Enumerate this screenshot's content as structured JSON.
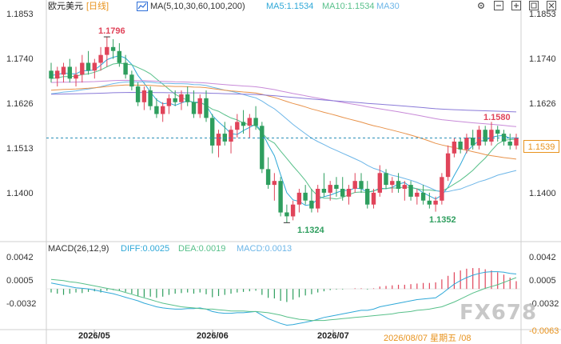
{
  "header": {
    "instrument": "欧元美元",
    "period": "[日线]",
    "ma_params": "MA(5,10,30,60,100,200)",
    "ma5": "MA5:1.1534",
    "ma10": "MA10:1.1534",
    "ma30": "MA30",
    "tools": [
      "settings-icon",
      "collapse-icon",
      "expand-icon",
      "fullscreen-icon",
      "crosshair-icon"
    ]
  },
  "price_axis": {
    "ticks": [
      "1.1853",
      "1.1740",
      "1.1626",
      "1.1513",
      "1.1400"
    ],
    "current": "1.1539"
  },
  "annotations": {
    "high1": "1.1796",
    "high2": "1.1580",
    "low1": "1.1324",
    "low2": "1.1352"
  },
  "macd": {
    "title": "MACD(26,12,9)",
    "diff": "DIFF:0.0025",
    "dea": "DEA:0.0019",
    "macd": "MACD:0.0013",
    "ticks": [
      "0.0042",
      "0.0005",
      "-0.0032"
    ],
    "min_label": "-0.0063"
  },
  "x_axis": {
    "labels": [
      "2026/05",
      "2026/06",
      "2026/07"
    ],
    "cursor_date": "2026/08/07 星期五 /08"
  },
  "watermark": "FX678",
  "colors": {
    "up": "#e0445a",
    "down": "#2e9e5e",
    "ma5": "#2fa8d8",
    "ma10": "#58c08a",
    "ma30": "#6db6e8",
    "ma60": "#e8924a",
    "ma100": "#c88ad8",
    "ma200": "#8a7ad8",
    "accent": "#e8931e"
  },
  "chart_data": {
    "type": "candlestick",
    "y_range": [
      1.128,
      1.1853
    ],
    "candles": [
      {
        "o": 1.171,
        "h": 1.173,
        "l": 1.168,
        "c": 1.169
      },
      {
        "o": 1.169,
        "h": 1.172,
        "l": 1.167,
        "c": 1.171
      },
      {
        "o": 1.17,
        "h": 1.173,
        "l": 1.168,
        "c": 1.172
      },
      {
        "o": 1.172,
        "h": 1.174,
        "l": 1.168,
        "c": 1.169
      },
      {
        "o": 1.169,
        "h": 1.172,
        "l": 1.167,
        "c": 1.17
      },
      {
        "o": 1.17,
        "h": 1.175,
        "l": 1.168,
        "c": 1.173
      },
      {
        "o": 1.173,
        "h": 1.176,
        "l": 1.17,
        "c": 1.171
      },
      {
        "o": 1.171,
        "h": 1.174,
        "l": 1.169,
        "c": 1.173
      },
      {
        "o": 1.173,
        "h": 1.177,
        "l": 1.171,
        "c": 1.175
      },
      {
        "o": 1.175,
        "h": 1.1796,
        "l": 1.172,
        "c": 1.177
      },
      {
        "o": 1.177,
        "h": 1.179,
        "l": 1.174,
        "c": 1.176
      },
      {
        "o": 1.176,
        "h": 1.178,
        "l": 1.172,
        "c": 1.173
      },
      {
        "o": 1.173,
        "h": 1.175,
        "l": 1.169,
        "c": 1.17
      },
      {
        "o": 1.17,
        "h": 1.171,
        "l": 1.166,
        "c": 1.167
      },
      {
        "o": 1.167,
        "h": 1.168,
        "l": 1.162,
        "c": 1.163
      },
      {
        "o": 1.163,
        "h": 1.167,
        "l": 1.161,
        "c": 1.166
      },
      {
        "o": 1.166,
        "h": 1.167,
        "l": 1.161,
        "c": 1.162
      },
      {
        "o": 1.162,
        "h": 1.164,
        "l": 1.159,
        "c": 1.16
      },
      {
        "o": 1.16,
        "h": 1.163,
        "l": 1.158,
        "c": 1.162
      },
      {
        "o": 1.162,
        "h": 1.165,
        "l": 1.16,
        "c": 1.164
      },
      {
        "o": 1.164,
        "h": 1.166,
        "l": 1.162,
        "c": 1.163
      },
      {
        "o": 1.163,
        "h": 1.166,
        "l": 1.161,
        "c": 1.165
      },
      {
        "o": 1.165,
        "h": 1.167,
        "l": 1.162,
        "c": 1.163
      },
      {
        "o": 1.163,
        "h": 1.166,
        "l": 1.159,
        "c": 1.16
      },
      {
        "o": 1.16,
        "h": 1.165,
        "l": 1.159,
        "c": 1.164
      },
      {
        "o": 1.164,
        "h": 1.166,
        "l": 1.158,
        "c": 1.159
      },
      {
        "o": 1.159,
        "h": 1.16,
        "l": 1.15,
        "c": 1.152
      },
      {
        "o": 1.152,
        "h": 1.156,
        "l": 1.149,
        "c": 1.155
      },
      {
        "o": 1.155,
        "h": 1.158,
        "l": 1.152,
        "c": 1.153
      },
      {
        "o": 1.153,
        "h": 1.157,
        "l": 1.15,
        "c": 1.156
      },
      {
        "o": 1.156,
        "h": 1.16,
        "l": 1.154,
        "c": 1.158
      },
      {
        "o": 1.158,
        "h": 1.161,
        "l": 1.155,
        "c": 1.157
      },
      {
        "o": 1.157,
        "h": 1.16,
        "l": 1.154,
        "c": 1.159
      },
      {
        "o": 1.159,
        "h": 1.162,
        "l": 1.156,
        "c": 1.157
      },
      {
        "o": 1.157,
        "h": 1.158,
        "l": 1.145,
        "c": 1.146
      },
      {
        "o": 1.146,
        "h": 1.149,
        "l": 1.141,
        "c": 1.142
      },
      {
        "o": 1.142,
        "h": 1.145,
        "l": 1.138,
        "c": 1.143
      },
      {
        "o": 1.143,
        "h": 1.144,
        "l": 1.134,
        "c": 1.135
      },
      {
        "o": 1.135,
        "h": 1.137,
        "l": 1.1324,
        "c": 1.134
      },
      {
        "o": 1.134,
        "h": 1.138,
        "l": 1.133,
        "c": 1.137
      },
      {
        "o": 1.137,
        "h": 1.141,
        "l": 1.135,
        "c": 1.14
      },
      {
        "o": 1.14,
        "h": 1.142,
        "l": 1.137,
        "c": 1.138
      },
      {
        "o": 1.138,
        "h": 1.141,
        "l": 1.135,
        "c": 1.136
      },
      {
        "o": 1.136,
        "h": 1.142,
        "l": 1.135,
        "c": 1.141
      },
      {
        "o": 1.141,
        "h": 1.145,
        "l": 1.139,
        "c": 1.14
      },
      {
        "o": 1.14,
        "h": 1.143,
        "l": 1.138,
        "c": 1.142
      },
      {
        "o": 1.142,
        "h": 1.144,
        "l": 1.139,
        "c": 1.141
      },
      {
        "o": 1.141,
        "h": 1.144,
        "l": 1.138,
        "c": 1.139
      },
      {
        "o": 1.139,
        "h": 1.142,
        "l": 1.137,
        "c": 1.141
      },
      {
        "o": 1.141,
        "h": 1.145,
        "l": 1.14,
        "c": 1.143
      },
      {
        "o": 1.143,
        "h": 1.145,
        "l": 1.14,
        "c": 1.141
      },
      {
        "o": 1.141,
        "h": 1.143,
        "l": 1.136,
        "c": 1.137
      },
      {
        "o": 1.137,
        "h": 1.141,
        "l": 1.136,
        "c": 1.14
      },
      {
        "o": 1.14,
        "h": 1.147,
        "l": 1.139,
        "c": 1.145
      },
      {
        "o": 1.145,
        "h": 1.146,
        "l": 1.141,
        "c": 1.142
      },
      {
        "o": 1.142,
        "h": 1.144,
        "l": 1.14,
        "c": 1.143
      },
      {
        "o": 1.143,
        "h": 1.145,
        "l": 1.14,
        "c": 1.141
      },
      {
        "o": 1.141,
        "h": 1.143,
        "l": 1.138,
        "c": 1.142
      },
      {
        "o": 1.142,
        "h": 1.143,
        "l": 1.138,
        "c": 1.139
      },
      {
        "o": 1.139,
        "h": 1.141,
        "l": 1.137,
        "c": 1.14
      },
      {
        "o": 1.14,
        "h": 1.142,
        "l": 1.137,
        "c": 1.138
      },
      {
        "o": 1.138,
        "h": 1.14,
        "l": 1.136,
        "c": 1.137
      },
      {
        "o": 1.137,
        "h": 1.139,
        "l": 1.1352,
        "c": 1.138
      },
      {
        "o": 1.138,
        "h": 1.145,
        "l": 1.137,
        "c": 1.144
      },
      {
        "o": 1.144,
        "h": 1.152,
        "l": 1.143,
        "c": 1.15
      },
      {
        "o": 1.15,
        "h": 1.154,
        "l": 1.149,
        "c": 1.153
      },
      {
        "o": 1.153,
        "h": 1.154,
        "l": 1.15,
        "c": 1.151
      },
      {
        "o": 1.151,
        "h": 1.155,
        "l": 1.15,
        "c": 1.154
      },
      {
        "o": 1.154,
        "h": 1.156,
        "l": 1.151,
        "c": 1.152
      },
      {
        "o": 1.152,
        "h": 1.157,
        "l": 1.151,
        "c": 1.156
      },
      {
        "o": 1.156,
        "h": 1.157,
        "l": 1.152,
        "c": 1.153
      },
      {
        "o": 1.153,
        "h": 1.158,
        "l": 1.152,
        "c": 1.156
      },
      {
        "o": 1.156,
        "h": 1.157,
        "l": 1.153,
        "c": 1.155
      },
      {
        "o": 1.155,
        "h": 1.156,
        "l": 1.152,
        "c": 1.153
      },
      {
        "o": 1.153,
        "h": 1.155,
        "l": 1.151,
        "c": 1.152
      },
      {
        "o": 1.152,
        "h": 1.155,
        "l": 1.151,
        "c": 1.1539
      }
    ],
    "macd_range": [
      -0.0063,
      0.0058
    ],
    "macd_hist": [
      -0.0006,
      -0.0008,
      -0.001,
      -0.0008,
      -0.0006,
      -0.0007,
      -0.0005,
      -0.0004,
      -0.0006,
      -0.0003,
      -0.0002,
      -0.0003,
      -0.0005,
      -0.0008,
      -0.0012,
      -0.0014,
      -0.0013,
      -0.0015,
      -0.0013,
      -0.001,
      -0.0008,
      -0.0007,
      -0.0006,
      -0.0008,
      -0.0006,
      -0.0009,
      -0.0014,
      -0.0012,
      -0.001,
      -0.0008,
      -0.0006,
      -0.0005,
      -0.0004,
      -0.0003,
      -0.001,
      -0.0015,
      -0.0016,
      -0.002,
      -0.0022,
      -0.0018,
      -0.0014,
      -0.0011,
      -0.0009,
      -0.0006,
      -0.0004,
      -0.0002,
      -0.0001,
      -0.0001,
      0.0,
      0.0001,
      0.0001,
      -0.0001,
      0.0001,
      0.0004,
      0.0005,
      0.0006,
      0.0007,
      0.0007,
      0.0008,
      0.0009,
      0.001,
      0.001,
      0.0011,
      0.0016,
      0.0022,
      0.0028,
      0.0031,
      0.0034,
      0.0035,
      0.0035,
      0.0033,
      0.0031,
      0.0028,
      0.0024,
      0.0019,
      0.0013
    ],
    "diff": [
      0.001,
      0.0008,
      0.0006,
      0.0004,
      0.0002,
      0.0001,
      0.0,
      -0.0002,
      -0.0004,
      -0.0006,
      -0.0008,
      -0.0011,
      -0.0014,
      -0.0017,
      -0.002,
      -0.0024,
      -0.0027,
      -0.003,
      -0.0032,
      -0.0033,
      -0.0034,
      -0.0034,
      -0.0033,
      -0.0033,
      -0.0032,
      -0.0034,
      -0.0038,
      -0.004,
      -0.0041,
      -0.0041,
      -0.004,
      -0.004,
      -0.0039,
      -0.0038,
      -0.0044,
      -0.005,
      -0.0054,
      -0.0058,
      -0.0061,
      -0.006,
      -0.0058,
      -0.0056,
      -0.0054,
      -0.0051,
      -0.0048,
      -0.0046,
      -0.0044,
      -0.0042,
      -0.004,
      -0.0038,
      -0.0036,
      -0.0036,
      -0.0034,
      -0.003,
      -0.0028,
      -0.0026,
      -0.0024,
      -0.0022,
      -0.002,
      -0.0018,
      -0.0017,
      -0.0016,
      -0.0015,
      -0.0008,
      0.0,
      0.0008,
      0.0014,
      0.0019,
      0.0023,
      0.0026,
      0.0028,
      0.0029,
      0.0029,
      0.0028,
      0.0026,
      0.0025
    ],
    "dea": [
      0.0016,
      0.0015,
      0.0014,
      0.0012,
      0.0011,
      0.0009,
      0.0007,
      0.0005,
      0.0003,
      0.0001,
      -0.0001,
      -0.0003,
      -0.0006,
      -0.0009,
      -0.0012,
      -0.0015,
      -0.0018,
      -0.0021,
      -0.0024,
      -0.0026,
      -0.0028,
      -0.003,
      -0.0031,
      -0.0032,
      -0.0033,
      -0.0034,
      -0.0034,
      -0.0035,
      -0.0036,
      -0.0037,
      -0.0037,
      -0.0037,
      -0.0038,
      -0.0038,
      -0.0039,
      -0.004,
      -0.0042,
      -0.0044,
      -0.0047,
      -0.0049,
      -0.0051,
      -0.0052,
      -0.0053,
      -0.0053,
      -0.0053,
      -0.0052,
      -0.0051,
      -0.005,
      -0.0049,
      -0.0048,
      -0.0047,
      -0.0046,
      -0.0045,
      -0.0044,
      -0.0043,
      -0.0042,
      -0.004,
      -0.0039,
      -0.0038,
      -0.0036,
      -0.0035,
      -0.0034,
      -0.0032,
      -0.003,
      -0.0026,
      -0.0022,
      -0.0017,
      -0.0012,
      -0.0007,
      -0.0003,
      0.0001,
      0.0004,
      0.0007,
      0.0011,
      0.0015,
      0.0019
    ]
  }
}
